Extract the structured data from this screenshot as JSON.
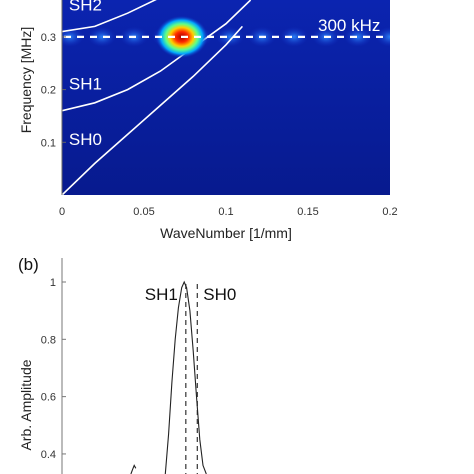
{
  "chart_data": [
    {
      "panel": "",
      "type": "heatmap",
      "xlabel": "WaveNumber [1/mm]",
      "ylabel": "Frequency [MHz]",
      "xlim": [
        0,
        0.2
      ],
      "ylim": [
        0,
        0.37
      ],
      "x_ticks": [
        "0",
        "0.05",
        "0.1",
        "0.15",
        "0.2"
      ],
      "y_ticks": [
        "0.1",
        "0.2",
        "0.3"
      ],
      "grid": false,
      "colormap": "jet",
      "peak": {
        "x": 0.073,
        "y": 0.3
      },
      "reference_line": {
        "y": 0.3,
        "label": "300 kHz",
        "style": "dashed",
        "color": "#ffffff"
      },
      "series": [
        {
          "name": "SH0",
          "x": [
            0,
            0.02,
            0.04,
            0.06,
            0.08,
            0.1,
            0.11
          ],
          "y": [
            0,
            0.06,
            0.115,
            0.17,
            0.225,
            0.285,
            0.32
          ]
        },
        {
          "name": "SH1",
          "x": [
            0,
            0.02,
            0.04,
            0.06,
            0.08,
            0.1,
            0.115
          ],
          "y": [
            0.16,
            0.175,
            0.2,
            0.235,
            0.28,
            0.325,
            0.37
          ]
        },
        {
          "name": "SH2",
          "x": [
            0,
            0.02,
            0.04,
            0.06
          ],
          "y": [
            0.31,
            0.32,
            0.345,
            0.375
          ]
        }
      ],
      "labels": [
        {
          "text": "SH2",
          "x": 0.003,
          "y": 0.35
        },
        {
          "text": "SH1",
          "x": 0.003,
          "y": 0.2
        },
        {
          "text": "SH0",
          "x": 0.003,
          "y": 0.095
        }
      ],
      "colors": {
        "background": "#0a1e9c",
        "peak": "#c40000",
        "curve": "#ffffff"
      }
    },
    {
      "panel": "(b)",
      "type": "line",
      "ylabel": "Arb. Amplitude",
      "ylim": [
        0.33,
        1.0
      ],
      "y_ticks": [
        "1",
        "0.8",
        "0.6",
        "0.4"
      ],
      "markers": [
        {
          "name": "SH1",
          "x": 0.0755,
          "style": "dashed"
        },
        {
          "name": "SH0",
          "x": 0.0825,
          "style": "dashed"
        }
      ],
      "series": [
        {
          "x": [
            0.042,
            0.043,
            0.044,
            0.045
          ],
          "y": [
            0.33,
            0.345,
            0.36,
            0.35
          ]
        },
        {
          "x": [
            0.063,
            0.065,
            0.067,
            0.069,
            0.071,
            0.073,
            0.0745,
            0.076,
            0.078,
            0.08,
            0.082,
            0.084,
            0.086,
            0.088
          ],
          "y": [
            0.33,
            0.47,
            0.65,
            0.8,
            0.91,
            0.98,
            1.0,
            0.98,
            0.9,
            0.76,
            0.6,
            0.45,
            0.36,
            0.33
          ]
        }
      ],
      "colors": {
        "line": "#222222",
        "axis": "#777777"
      }
    }
  ]
}
